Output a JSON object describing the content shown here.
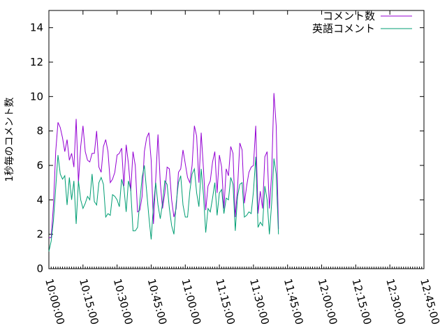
{
  "chart_data": {
    "type": "line",
    "title": "",
    "xlabel": "",
    "ylabel": "1秒毎のコメント数",
    "xlim": [
      "10:00:00",
      "12:45:00"
    ],
    "ylim": [
      0,
      15
    ],
    "x_ticks": [
      "10:00:00",
      "10:15:00",
      "10:30:00",
      "10:45:00",
      "11:00:00",
      "11:15:00",
      "11:30:00",
      "11:45:00",
      "12:00:00",
      "12:15:00",
      "12:30:00",
      "12:45:00"
    ],
    "y_ticks": [
      0,
      2,
      4,
      6,
      8,
      10,
      12,
      14
    ],
    "x_interval_minutes": 1,
    "legend_position": "top-right",
    "grid": false,
    "series": [
      {
        "name": "コメント数",
        "color": "#9400d3",
        "start": "10:00:00",
        "values": [
          1.8,
          1.8,
          3.7,
          6.8,
          8.5,
          8.2,
          7.6,
          6.8,
          7.5,
          6.3,
          6.7,
          5.9,
          8.7,
          5.0,
          7.1,
          8.3,
          6.8,
          6.3,
          6.2,
          6.7,
          6.7,
          8.0,
          5.9,
          5.6,
          7.1,
          7.5,
          6.8,
          5.0,
          5.2,
          5.6,
          6.6,
          6.7,
          7.0,
          4.8,
          7.2,
          6.1,
          4.5,
          6.8,
          6.0,
          3.3,
          3.4,
          4.2,
          6.8,
          7.6,
          7.9,
          6.3,
          2.6,
          5.2,
          7.8,
          5.0,
          3.5,
          4.4,
          5.9,
          5.8,
          4.0,
          3.0,
          3.5,
          5.6,
          5.8,
          6.9,
          6.1,
          5.3,
          5.0,
          6.0,
          8.3,
          7.7,
          5.0,
          7.9,
          5.8,
          3.4,
          4.8,
          5.1,
          6.2,
          6.8,
          4.4,
          6.6,
          5.9,
          3.5,
          5.8,
          5.4,
          7.1,
          6.7,
          3.0,
          4.7,
          7.3,
          6.9,
          3.8,
          4.8,
          5.6,
          5.9,
          6.0,
          8.3,
          3.2,
          4.5,
          3.5,
          6.5,
          6.8,
          3.5,
          5.5,
          10.2,
          8.3,
          2.3
        ]
      },
      {
        "name": "英語コメント",
        "color": "#009e73",
        "start": "10:00:00",
        "values": [
          1.0,
          1.6,
          2.8,
          4.7,
          6.6,
          5.5,
          5.2,
          5.4,
          3.7,
          5.3,
          4.0,
          5.1,
          2.6,
          5.1,
          4.0,
          3.5,
          3.8,
          4.2,
          4.0,
          5.5,
          3.9,
          3.7,
          5.0,
          5.3,
          4.9,
          3.0,
          3.2,
          3.1,
          4.3,
          4.2,
          4.0,
          3.6,
          5.2,
          4.7,
          3.3,
          5.1,
          4.6,
          2.2,
          2.2,
          2.4,
          3.9,
          5.3,
          6.0,
          4.5,
          3.0,
          1.7,
          3.7,
          5.0,
          3.7,
          2.9,
          3.8,
          5.1,
          4.9,
          3.5,
          2.5,
          2.0,
          3.8,
          5.0,
          5.4,
          3.7,
          3.0,
          3.0,
          4.5,
          5.5,
          5.8,
          4.4,
          3.6,
          5.8,
          4.3,
          2.1,
          3.5,
          3.3,
          4.1,
          5.0,
          3.1,
          4.4,
          4.6,
          3.2,
          4.1,
          4.0,
          5.3,
          4.9,
          2.2,
          4.2,
          4.9,
          5.0,
          3.0,
          3.1,
          3.3,
          3.2,
          4.5,
          6.5,
          2.4,
          2.7,
          2.5,
          4.8,
          4.0,
          2.0,
          3.8,
          6.4,
          5.5,
          2.0
        ]
      }
    ]
  }
}
